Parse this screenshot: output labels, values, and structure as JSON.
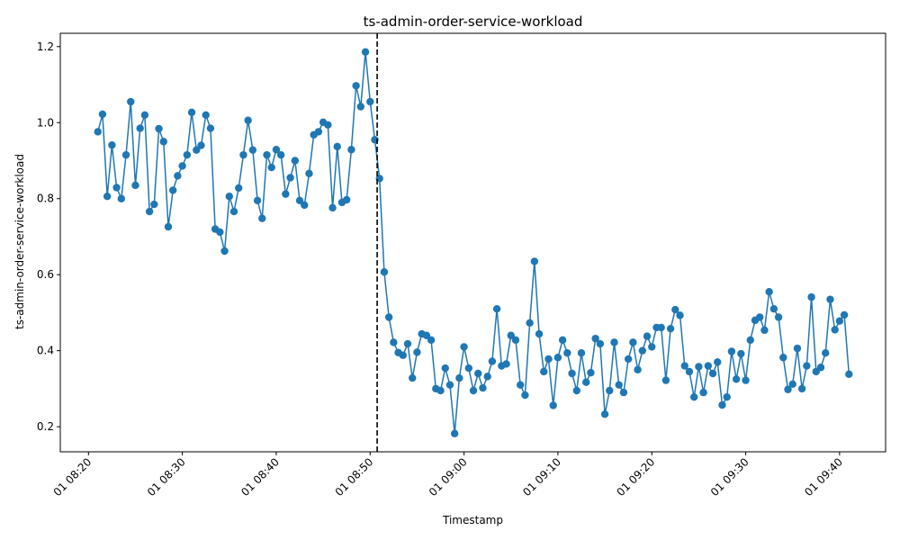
{
  "chart_data": {
    "type": "line",
    "title": "ts-admin-order-service-workload",
    "xlabel": "Timestamp",
    "ylabel": "ts-admin-order-service-workload",
    "x_tick_labels": [
      "01 08:20",
      "01 08:30",
      "01 08:40",
      "01 08:50",
      "01 09:00",
      "01 09:10",
      "01 09:20",
      "01 09:30",
      "01 09:40"
    ],
    "y_tick_labels": [
      "0.2",
      "0.4",
      "0.6",
      "0.8",
      "1.0",
      "1.2"
    ],
    "x_ticks_minutes": [
      0,
      10,
      20,
      30,
      40,
      50,
      60,
      70,
      80
    ],
    "y_ticks": [
      0.2,
      0.4,
      0.6,
      0.8,
      1.0,
      1.2
    ],
    "xlim_minutes": [
      -3.0,
      84.9
    ],
    "ylim": [
      0.134,
      1.235
    ],
    "x_start": "01 08:21",
    "x_step_seconds": 30,
    "change_point_minutes": 30.75,
    "grid": false,
    "legend": "none",
    "colors": {
      "line": "#1f77b4",
      "marker": "#1f77b4",
      "change_point": "#000000"
    },
    "series": [
      {
        "name": "",
        "values": [
          0.976,
          1.022,
          0.806,
          0.941,
          0.829,
          0.8,
          0.915,
          1.055,
          0.835,
          0.985,
          1.02,
          0.766,
          0.785,
          0.984,
          0.95,
          0.726,
          0.822,
          0.86,
          0.886,
          0.915,
          1.027,
          0.928,
          0.94,
          1.02,
          0.985,
          0.72,
          0.712,
          0.662,
          0.806,
          0.766,
          0.828,
          0.915,
          1.006,
          0.928,
          0.795,
          0.748,
          0.915,
          0.882,
          0.929,
          0.915,
          0.812,
          0.855,
          0.9,
          0.795,
          0.783,
          0.866,
          0.968,
          0.976,
          1.001,
          0.994,
          0.776,
          0.937,
          0.79,
          0.797,
          0.929,
          1.097,
          1.042,
          1.186,
          1.055,
          0.955,
          0.853,
          0.607,
          0.488,
          0.422,
          0.395,
          0.388,
          0.418,
          0.328,
          0.396,
          0.444,
          0.44,
          0.428,
          0.3,
          0.295,
          0.354,
          0.31,
          0.182,
          0.328,
          0.41,
          0.354,
          0.295,
          0.34,
          0.302,
          0.332,
          0.372,
          0.51,
          0.36,
          0.365,
          0.44,
          0.428,
          0.31,
          0.283,
          0.473,
          0.635,
          0.444,
          0.345,
          0.378,
          0.256,
          0.382,
          0.428,
          0.394,
          0.34,
          0.295,
          0.394,
          0.317,
          0.342,
          0.432,
          0.418,
          0.233,
          0.295,
          0.422,
          0.31,
          0.29,
          0.378,
          0.422,
          0.35,
          0.4,
          0.438,
          0.41,
          0.461,
          0.461,
          0.322,
          0.458,
          0.508,
          0.493,
          0.36,
          0.345,
          0.278,
          0.358,
          0.29,
          0.36,
          0.34,
          0.37,
          0.257,
          0.278,
          0.398,
          0.325,
          0.392,
          0.322,
          0.428,
          0.48,
          0.488,
          0.454,
          0.555,
          0.51,
          0.488,
          0.382,
          0.298,
          0.312,
          0.406,
          0.3,
          0.36,
          0.541,
          0.345,
          0.356,
          0.394,
          0.535,
          0.455,
          0.478,
          0.494,
          0.338
        ]
      }
    ]
  }
}
